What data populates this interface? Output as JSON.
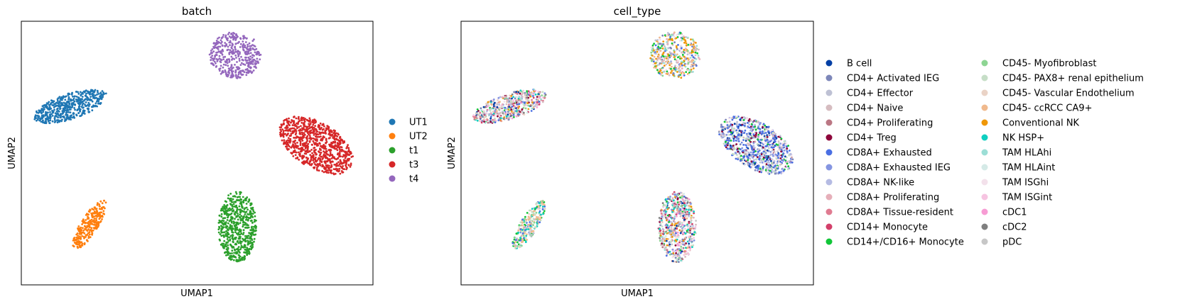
{
  "chart_data": [
    {
      "type": "scatter",
      "title": "batch",
      "xlabel": "UMAP1",
      "ylabel": "UMAP2",
      "grid": false,
      "legend_placement": "right",
      "series": [
        {
          "name": "UT1",
          "color": "#1f77b4"
        },
        {
          "name": "UT2",
          "color": "#ff7f0e"
        },
        {
          "name": "t1",
          "color": "#2ca02c"
        },
        {
          "name": "t3",
          "color": "#d62728"
        },
        {
          "name": "t4",
          "color": "#9467bd"
        }
      ]
    },
    {
      "type": "scatter",
      "title": "cell_type",
      "xlabel": "UMAP1",
      "ylabel": "UMAP2",
      "grid": false,
      "legend_placement": "right",
      "series": [
        {
          "name": "B cell",
          "color": "#023fa5"
        },
        {
          "name": "CD4+ Activated IEG",
          "color": "#7d87b9"
        },
        {
          "name": "CD4+ Effector",
          "color": "#bec1d4"
        },
        {
          "name": "CD4+ Naive",
          "color": "#d6bcc0"
        },
        {
          "name": "CD4+ Proliferating",
          "color": "#bb7784"
        },
        {
          "name": "CD4+ Treg",
          "color": "#8e063b"
        },
        {
          "name": "CD8A+ Exhausted",
          "color": "#4a6fe3"
        },
        {
          "name": "CD8A+ Exhausted IEG",
          "color": "#8595e1"
        },
        {
          "name": "CD8A+ NK-like",
          "color": "#b5bbe3"
        },
        {
          "name": "CD8A+ Proliferating",
          "color": "#e6afb9"
        },
        {
          "name": "CD8A+ Tissue-resident",
          "color": "#e07b91"
        },
        {
          "name": "CD14+ Monocyte",
          "color": "#d33f6a"
        },
        {
          "name": "CD14+/CD16+ Monocyte",
          "color": "#11c638"
        },
        {
          "name": "CD45- Myofibroblast",
          "color": "#8dd593"
        },
        {
          "name": "CD45- PAX8+ renal epithelium",
          "color": "#c6dec7"
        },
        {
          "name": "CD45- Vascular Endothelium",
          "color": "#ead3c6"
        },
        {
          "name": "CD45- ccRCC CA9+",
          "color": "#f0b98d"
        },
        {
          "name": "Conventional NK",
          "color": "#ef9708"
        },
        {
          "name": "NK HSP+",
          "color": "#0fcfc0"
        },
        {
          "name": "TAM HLAhi",
          "color": "#9cded6"
        },
        {
          "name": "TAM HLAint",
          "color": "#d5eae7"
        },
        {
          "name": "TAM ISGhi",
          "color": "#f3e1eb"
        },
        {
          "name": "TAM ISGint",
          "color": "#f6c4e1"
        },
        {
          "name": "cDC1",
          "color": "#f79cd4"
        },
        {
          "name": "cDC2",
          "color": "#7f7f7f"
        },
        {
          "name": "pDC",
          "color": "#c7c7c7"
        }
      ]
    }
  ]
}
